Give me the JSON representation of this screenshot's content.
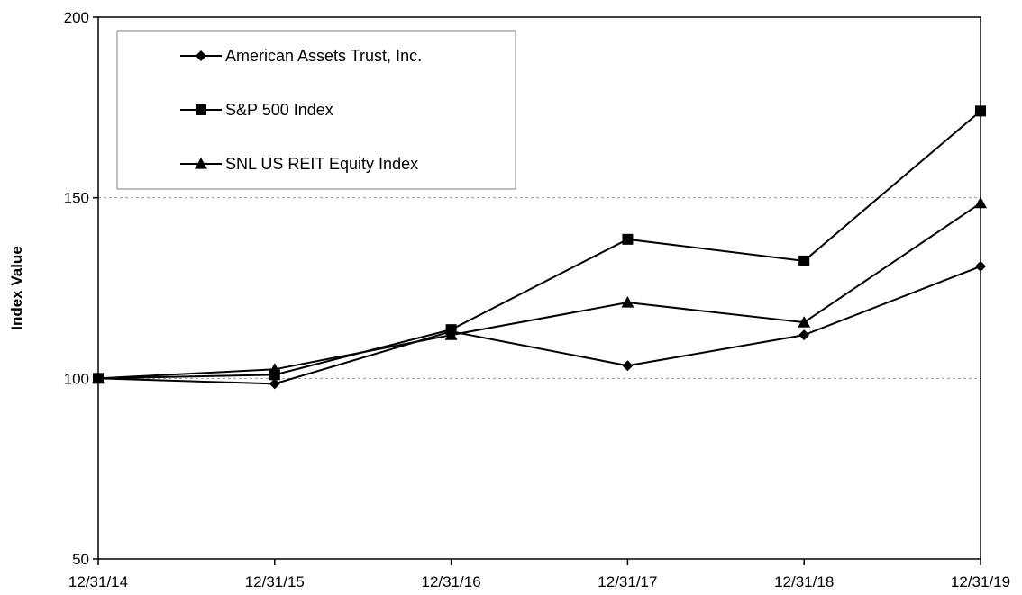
{
  "chart_data": {
    "type": "line",
    "title": "",
    "xlabel": "",
    "ylabel": "Index Value",
    "categories": [
      "12/31/14",
      "12/31/15",
      "12/31/16",
      "12/31/17",
      "12/31/18",
      "12/31/19"
    ],
    "ylim": [
      50,
      200
    ],
    "yticks": [
      "50",
      "100",
      "150",
      "200"
    ],
    "gridlines_at": [
      100,
      150
    ],
    "legend_position": "top-left",
    "series": [
      {
        "name": "American Assets Trust, Inc.",
        "marker": "diamond",
        "values": [
          100,
          98.5,
          113,
          103.5,
          112,
          131
        ]
      },
      {
        "name": "S&P 500 Index",
        "marker": "square",
        "values": [
          100,
          101,
          113.5,
          138.5,
          132.5,
          174
        ]
      },
      {
        "name": "SNL US REIT Equity Index",
        "marker": "triangle",
        "values": [
          100,
          102.5,
          112,
          121,
          115.5,
          148.5
        ]
      }
    ]
  }
}
